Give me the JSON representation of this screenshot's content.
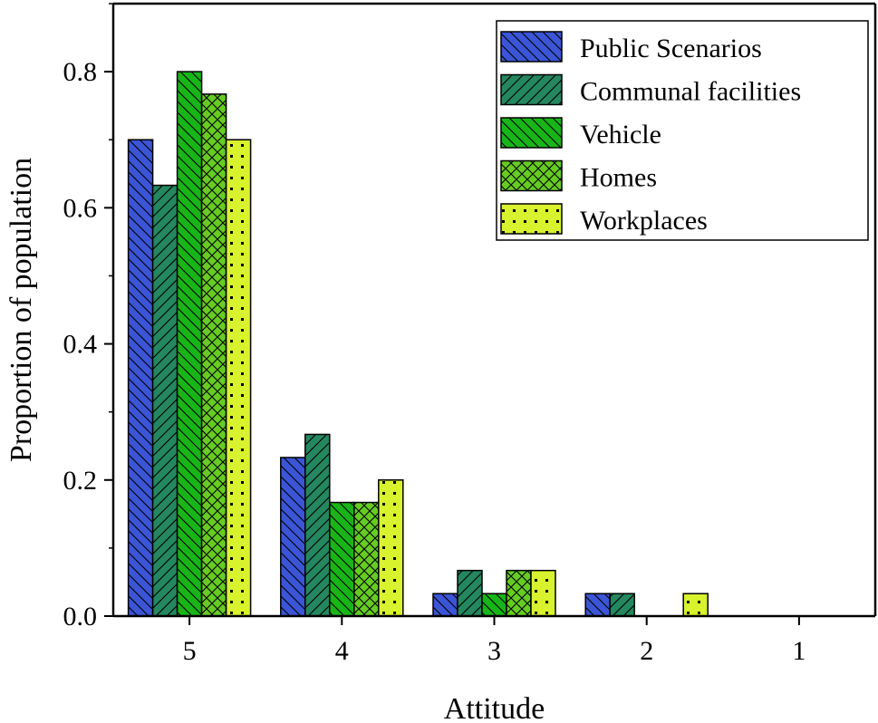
{
  "chart_data": {
    "type": "bar",
    "xlabel": "Attitude",
    "ylabel": "Proportion of population",
    "categories": [
      "5",
      "4",
      "3",
      "2",
      "1"
    ],
    "ylim": [
      0,
      0.9
    ],
    "yticks": [
      "0.0",
      "0.2",
      "0.4",
      "0.6",
      "0.8"
    ],
    "legend_position": "top-right",
    "grid": false,
    "series": [
      {
        "name": "Public Scenarios",
        "color": "#3b55d6",
        "pattern": "diag-back",
        "values": [
          0.7,
          0.233,
          0.033,
          0.033,
          0
        ]
      },
      {
        "name": "Communal facilities",
        "color": "#24875f",
        "pattern": "diag-fwd",
        "values": [
          0.633,
          0.267,
          0.067,
          0.033,
          0
        ]
      },
      {
        "name": "Vehicle",
        "color": "#18b518",
        "pattern": "diag-back",
        "values": [
          0.8,
          0.167,
          0.033,
          0,
          0
        ]
      },
      {
        "name": "Homes",
        "color": "#66cc22",
        "pattern": "crosshatch",
        "values": [
          0.767,
          0.167,
          0.067,
          0,
          0
        ]
      },
      {
        "name": "Workplaces",
        "color": "#d8f22e",
        "pattern": "dots",
        "values": [
          0.7,
          0.2,
          0.067,
          0.033,
          0
        ]
      }
    ]
  }
}
